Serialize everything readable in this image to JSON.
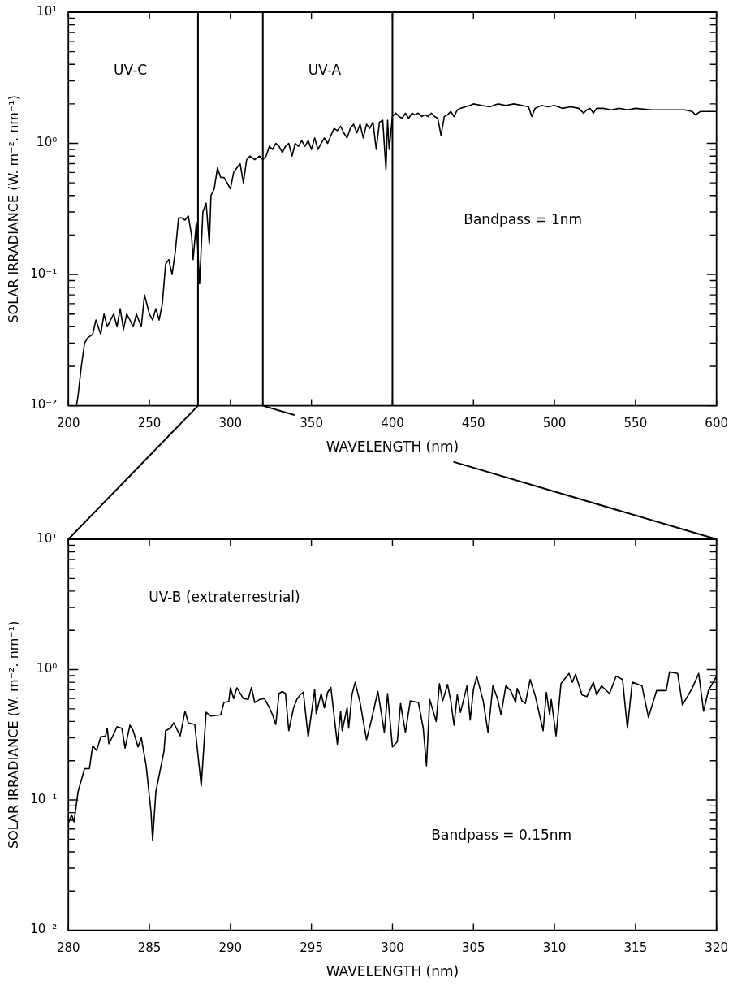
{
  "chart_data": [
    {
      "type": "line",
      "xlabel": "WAVELENGTH (nm)",
      "ylabel": "SOLAR IRRADIANCE (W. m⁻². nm⁻¹)",
      "log": true,
      "color": "#000000",
      "x": [
        205,
        206,
        208,
        210,
        212,
        215,
        217,
        220,
        222,
        224,
        226,
        228,
        230,
        232,
        234,
        236,
        238,
        240,
        242,
        245,
        247,
        250,
        252,
        254,
        256,
        258,
        260,
        262,
        264,
        266,
        268,
        270,
        272,
        274,
        276,
        277,
        279,
        281,
        283,
        285,
        287,
        288,
        290,
        292,
        294,
        296,
        298,
        300,
        302,
        304,
        306,
        308,
        310,
        312,
        315,
        318,
        320,
        322,
        324,
        326,
        328,
        330,
        332,
        334,
        336,
        338,
        340,
        342,
        344,
        346,
        348,
        350,
        352,
        354,
        356,
        358,
        360,
        362,
        364,
        366,
        368,
        370,
        372,
        374,
        376,
        378,
        380,
        382,
        384,
        386,
        388,
        390,
        392,
        394,
        396,
        397,
        398,
        400,
        402,
        404,
        406,
        408,
        410,
        412,
        414,
        416,
        418,
        420,
        422,
        424,
        426,
        428,
        430,
        432,
        434,
        436,
        438,
        440,
        442,
        445,
        448,
        450,
        455,
        460,
        465,
        470,
        475,
        480,
        484,
        486,
        488,
        492,
        496,
        500,
        505,
        510,
        515,
        518,
        520,
        522,
        524,
        526,
        530,
        535,
        540,
        545,
        550,
        560,
        570,
        580,
        585,
        587,
        590,
        600
      ],
      "values": [
        0.01,
        0.012,
        0.02,
        0.03,
        0.033,
        0.035,
        0.045,
        0.035,
        0.05,
        0.04,
        0.045,
        0.05,
        0.04,
        0.055,
        0.038,
        0.05,
        0.045,
        0.04,
        0.05,
        0.04,
        0.07,
        0.05,
        0.045,
        0.055,
        0.045,
        0.06,
        0.12,
        0.13,
        0.1,
        0.15,
        0.27,
        0.27,
        0.26,
        0.28,
        0.2,
        0.13,
        0.25,
        0.085,
        0.3,
        0.35,
        0.17,
        0.4,
        0.45,
        0.65,
        0.55,
        0.55,
        0.5,
        0.45,
        0.6,
        0.65,
        0.7,
        0.5,
        0.75,
        0.8,
        0.75,
        0.8,
        0.75,
        0.8,
        0.95,
        0.9,
        1.0,
        0.95,
        0.85,
        0.95,
        1.0,
        0.8,
        1.0,
        0.95,
        1.05,
        0.95,
        1.05,
        0.9,
        1.1,
        0.9,
        1.0,
        1.1,
        1.0,
        1.15,
        1.3,
        1.25,
        1.35,
        1.2,
        1.1,
        1.3,
        1.4,
        1.2,
        1.4,
        1.1,
        1.4,
        1.3,
        1.45,
        0.9,
        1.45,
        1.5,
        0.63,
        1.5,
        0.9,
        1.6,
        1.7,
        1.6,
        1.55,
        1.7,
        1.55,
        1.7,
        1.65,
        1.7,
        1.6,
        1.65,
        1.6,
        1.7,
        1.6,
        1.55,
        1.15,
        1.6,
        1.65,
        1.75,
        1.6,
        1.8,
        1.85,
        1.9,
        1.95,
        2.0,
        1.95,
        1.9,
        2.0,
        1.95,
        2.0,
        1.95,
        1.9,
        1.6,
        1.85,
        1.95,
        1.9,
        1.95,
        1.85,
        1.9,
        1.85,
        1.7,
        1.8,
        1.85,
        1.7,
        1.85,
        1.85,
        1.8,
        1.85,
        1.8,
        1.85,
        1.8,
        1.8,
        1.8,
        1.75,
        1.65,
        1.75,
        1.75
      ],
      "xlim": [
        200,
        600
      ],
      "xticks": [
        200,
        250,
        300,
        350,
        400,
        450,
        500,
        550,
        600
      ],
      "ylim": [
        0.01,
        10
      ],
      "yticks": [
        {
          "value": 0.01,
          "label": "10⁻²"
        },
        {
          "value": 0.02,
          "label": null
        },
        {
          "value": 0.03,
          "label": null
        },
        {
          "value": 0.04,
          "label": null
        },
        {
          "value": 0.05,
          "label": null
        },
        {
          "value": 0.06,
          "label": null
        },
        {
          "value": 0.07,
          "label": null
        },
        {
          "value": 0.08,
          "label": null
        },
        {
          "value": 0.09,
          "label": null
        },
        {
          "value": 0.1,
          "label": "10⁻¹"
        },
        {
          "value": 0.2,
          "label": null
        },
        {
          "value": 0.3,
          "label": null
        },
        {
          "value": 0.4,
          "label": null
        },
        {
          "value": 0.5,
          "label": null
        },
        {
          "value": 0.6,
          "label": null
        },
        {
          "value": 0.7,
          "label": null
        },
        {
          "value": 0.8,
          "label": null
        },
        {
          "value": 0.9,
          "label": null
        },
        {
          "value": 1,
          "label": "10⁰"
        },
        {
          "value": 2,
          "label": null
        },
        {
          "value": 3,
          "label": null
        },
        {
          "value": 4,
          "label": null
        },
        {
          "value": 5,
          "label": null
        },
        {
          "value": 6,
          "label": null
        },
        {
          "value": 7,
          "label": null
        },
        {
          "value": 8,
          "label": null
        },
        {
          "value": 9,
          "label": null
        },
        {
          "value": 10,
          "label": "10¹"
        }
      ],
      "ref_lines": [
        {
          "axis": "x",
          "value": 280
        },
        {
          "axis": "x",
          "value": 320
        },
        {
          "axis": "x",
          "value": 400
        }
      ],
      "annotations": [
        "UV-C",
        "UV-A",
        "Bandpass = 1nm"
      ]
    },
    {
      "type": "line",
      "xlabel": "WAVELENGTH (nm)",
      "ylabel": "SOLAR IRRADIANCE (W. m⁻². nm⁻¹)",
      "log": true,
      "color": "#000000",
      "x": [
        280,
        280.2,
        280.35,
        280.6,
        281,
        281.3,
        281.5,
        281.75,
        282,
        282.3,
        282.4,
        282.5,
        282.8,
        283,
        283.3,
        283.5,
        283.8,
        284,
        284.3,
        284.5,
        284.8,
        285.1,
        285.2,
        285.4,
        285.9,
        286,
        286.3,
        286.5,
        286.9,
        287.2,
        287.4,
        287.8,
        288.2,
        288.5,
        288.8,
        289.4,
        289.6,
        289.9,
        290,
        290.2,
        290.4,
        290.8,
        291.1,
        291.3,
        291.5,
        291.8,
        292.1,
        292.4,
        292.6,
        292.8,
        293,
        293.2,
        293.4,
        293.6,
        293.9,
        294.1,
        294.3,
        294.5,
        294.8,
        295.2,
        295.3,
        295.6,
        295.8,
        296,
        296.2,
        296.6,
        296.8,
        296.9,
        297.2,
        297.3,
        297.5,
        297.7,
        298,
        298.4,
        298.7,
        299.1,
        299.5,
        299.7,
        300,
        300.3,
        300.5,
        300.8,
        301.1,
        301.6,
        301.9,
        302.1,
        302.3,
        302.7,
        302.9,
        303.1,
        303.4,
        303.6,
        303.8,
        304,
        304.2,
        304.6,
        304.8,
        305,
        305.2,
        305.6,
        305.9,
        306.2,
        306.5,
        306.7,
        307,
        307.3,
        307.6,
        307.7,
        308,
        308.2,
        308.5,
        308.8,
        309.3,
        309.5,
        309.7,
        309.8,
        310.1,
        310.4,
        310.9,
        311.1,
        311.3,
        311.7,
        312,
        312.4,
        312.6,
        312.9,
        313.4,
        313.8,
        314.2,
        314.5,
        314.8,
        315.4,
        315.8,
        316.3,
        316.9,
        317.1,
        317.6,
        317.9,
        318.5,
        318.9,
        319.2,
        319.5,
        320
      ],
      "values": [
        0.066,
        0.077,
        0.068,
        0.116,
        0.174,
        0.174,
        0.26,
        0.24,
        0.305,
        0.31,
        0.355,
        0.27,
        0.32,
        0.365,
        0.355,
        0.25,
        0.375,
        0.34,
        0.255,
        0.3,
        0.183,
        0.081,
        0.049,
        0.116,
        0.236,
        0.34,
        0.355,
        0.39,
        0.31,
        0.48,
        0.39,
        0.38,
        0.128,
        0.47,
        0.44,
        0.45,
        0.56,
        0.57,
        0.725,
        0.6,
        0.725,
        0.6,
        0.59,
        0.73,
        0.56,
        0.59,
        0.6,
        0.51,
        0.45,
        0.38,
        0.655,
        0.68,
        0.655,
        0.34,
        0.51,
        0.59,
        0.64,
        0.67,
        0.305,
        0.705,
        0.46,
        0.655,
        0.51,
        0.67,
        0.73,
        0.268,
        0.48,
        0.34,
        0.51,
        0.355,
        0.64,
        0.8,
        0.56,
        0.29,
        0.41,
        0.68,
        0.33,
        0.655,
        0.255,
        0.28,
        0.55,
        0.33,
        0.575,
        0.56,
        0.355,
        0.183,
        0.59,
        0.4,
        0.78,
        0.575,
        0.77,
        0.575,
        0.375,
        0.64,
        0.47,
        0.75,
        0.41,
        0.705,
        0.89,
        0.575,
        0.33,
        0.75,
        0.59,
        0.45,
        0.75,
        0.69,
        0.56,
        0.72,
        0.575,
        0.55,
        0.84,
        0.64,
        0.34,
        0.67,
        0.45,
        0.59,
        0.31,
        0.78,
        0.935,
        0.8,
        0.92,
        0.64,
        0.62,
        0.8,
        0.64,
        0.75,
        0.655,
        0.89,
        0.84,
        0.355,
        0.8,
        0.75,
        0.43,
        0.69,
        0.69,
        0.96,
        0.935,
        0.535,
        0.72,
        0.935,
        0.48,
        0.69,
        0.89
      ],
      "xlim": [
        280,
        320
      ],
      "xticks": [
        280,
        285,
        290,
        295,
        300,
        305,
        310,
        315,
        320
      ],
      "ylim": [
        0.01,
        10
      ],
      "yticks": [
        {
          "value": 0.01,
          "label": "10⁻²"
        },
        {
          "value": 0.02,
          "label": null
        },
        {
          "value": 0.03,
          "label": null
        },
        {
          "value": 0.04,
          "label": null
        },
        {
          "value": 0.05,
          "label": null
        },
        {
          "value": 0.06,
          "label": null
        },
        {
          "value": 0.07,
          "label": null
        },
        {
          "value": 0.08,
          "label": null
        },
        {
          "value": 0.09,
          "label": null
        },
        {
          "value": 0.1,
          "label": "10⁻¹"
        },
        {
          "value": 0.2,
          "label": null
        },
        {
          "value": 0.3,
          "label": null
        },
        {
          "value": 0.4,
          "label": null
        },
        {
          "value": 0.5,
          "label": null
        },
        {
          "value": 0.6,
          "label": null
        },
        {
          "value": 0.7,
          "label": null
        },
        {
          "value": 0.8,
          "label": null
        },
        {
          "value": 0.9,
          "label": null
        },
        {
          "value": 1,
          "label": "10⁰"
        },
        {
          "value": 2,
          "label": null
        },
        {
          "value": 3,
          "label": null
        },
        {
          "value": 4,
          "label": null
        },
        {
          "value": 5,
          "label": null
        },
        {
          "value": 6,
          "label": null
        },
        {
          "value": 7,
          "label": null
        },
        {
          "value": 8,
          "label": null
        },
        {
          "value": 9,
          "label": null
        },
        {
          "value": 10,
          "label": "10¹"
        }
      ],
      "annotations": [
        "UV-B (extraterrestrial)",
        "Bandpass = 0.15nm"
      ]
    }
  ]
}
